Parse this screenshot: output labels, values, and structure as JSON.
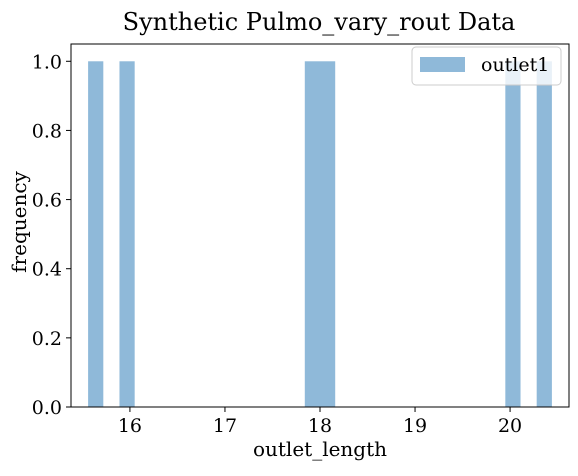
{
  "chart_data": {
    "type": "bar",
    "title": "Synthetic Pulmo_vary_rout Data",
    "xlabel": "outlet_length",
    "ylabel": "frequency",
    "xlim": [
      15.38,
      20.62
    ],
    "ylim": [
      0,
      1.05
    ],
    "x_ticks": [
      "16",
      "17",
      "18",
      "19",
      "20"
    ],
    "y_ticks": [
      "0.0",
      "0.2",
      "0.4",
      "0.6",
      "0.8",
      "1.0"
    ],
    "grid": false,
    "legend_position": "top-right",
    "series": [
      {
        "name": "outlet1",
        "color": "#8fb9d9",
        "bins": [
          {
            "x0": 15.56,
            "x1": 15.72,
            "count": 1
          },
          {
            "x0": 15.89,
            "x1": 16.05,
            "count": 1
          },
          {
            "x0": 17.84,
            "x1": 18.16,
            "count": 1
          },
          {
            "x0": 19.95,
            "x1": 20.11,
            "count": 1
          },
          {
            "x0": 20.28,
            "x1": 20.44,
            "count": 1
          }
        ]
      }
    ]
  }
}
